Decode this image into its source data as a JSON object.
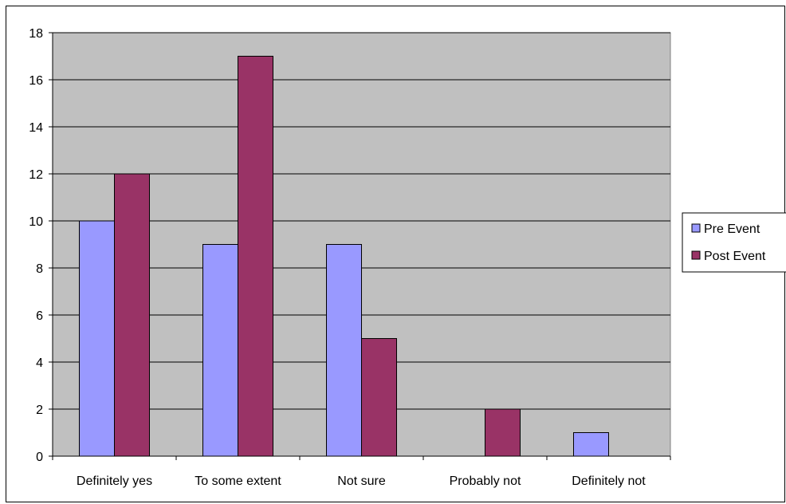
{
  "chart_data": {
    "type": "bar",
    "title": "",
    "xlabel": "",
    "ylabel": "",
    "categories": [
      "Definitely yes",
      "To some extent",
      "Not sure",
      "Probably not",
      "Definitely not"
    ],
    "series": [
      {
        "name": "Pre Event",
        "values": [
          10,
          9,
          9,
          0,
          1
        ],
        "color": "#9999ff"
      },
      {
        "name": "Post Event",
        "values": [
          12,
          17,
          5,
          2,
          0
        ],
        "color": "#993366"
      }
    ],
    "ylim": [
      0,
      18
    ],
    "yticks": [
      0,
      2,
      4,
      6,
      8,
      10,
      12,
      14,
      16,
      18
    ],
    "grid": true,
    "plot_background": "#c0c0c0",
    "legend_position": "right"
  }
}
